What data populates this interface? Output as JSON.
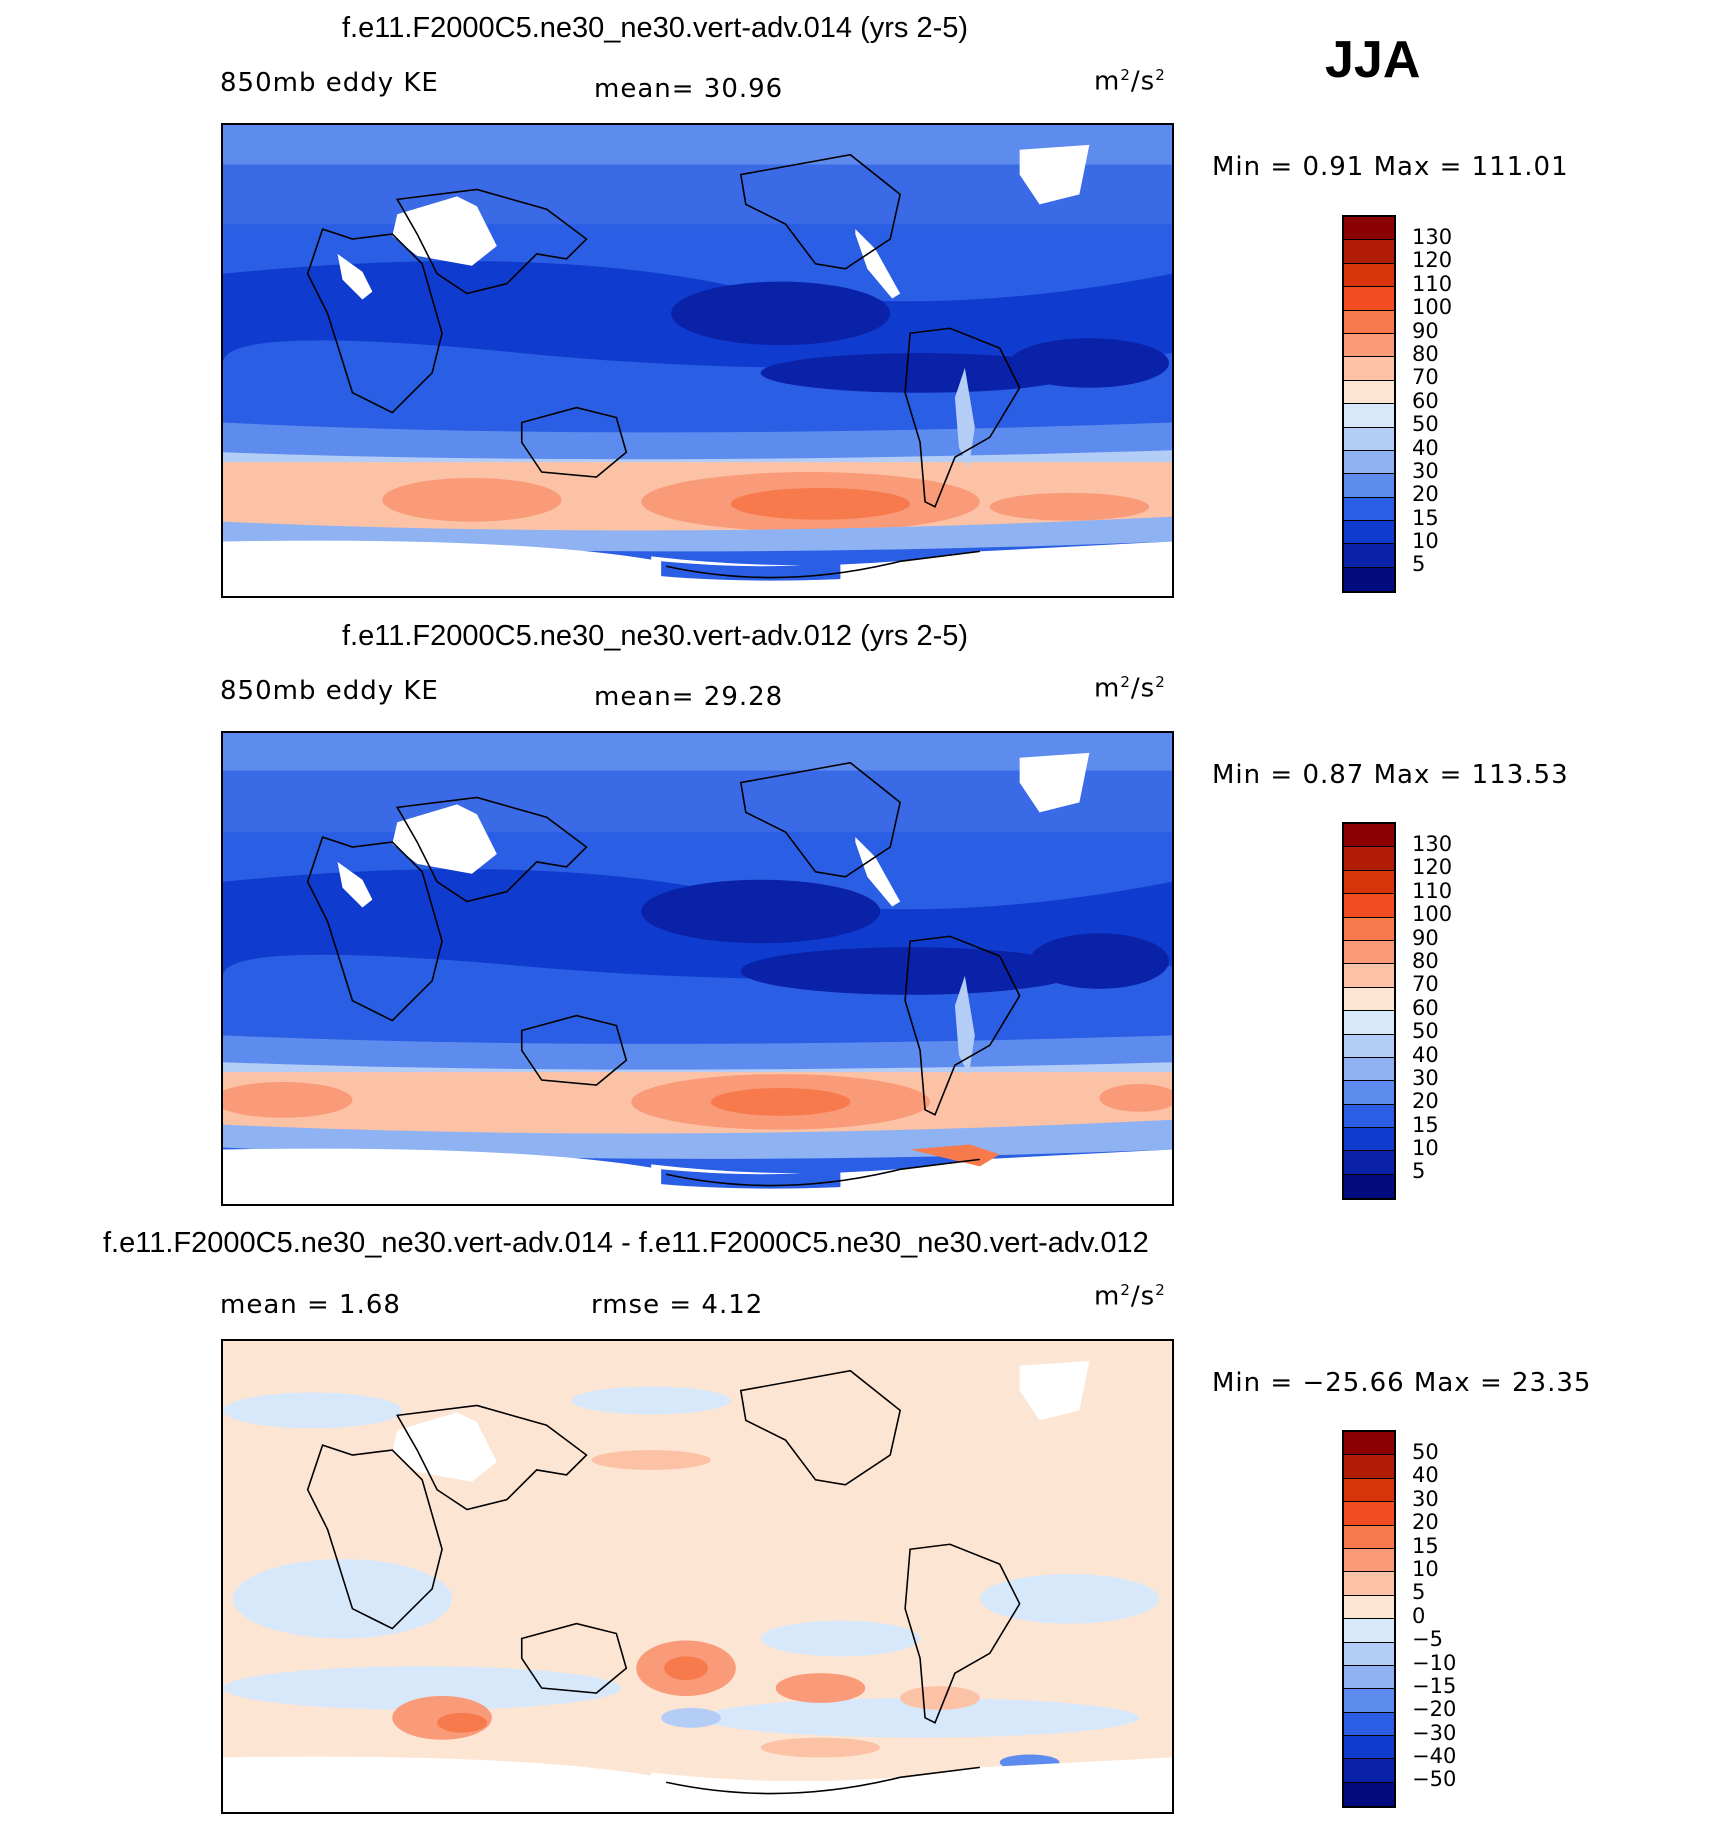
{
  "season": "JJA",
  "colors": {
    "ocean_deep": "#0a22a8",
    "ocean_mid": "#1f4fd6",
    "ocean_light": "#6f9bf0",
    "storm_track": "#f7a489",
    "storm_core": "#ef5a34",
    "coast": "#000000"
  },
  "panels": [
    {
      "title": "f.e11.F2000C5.ne30_ne30.vert-adv.014 (yrs 2-5)",
      "variable": "850mb eddy KE",
      "stat_left": "",
      "stat_center": "mean=   30.96",
      "units_base": "m",
      "units_exp1": "2",
      "units_mid": "/s",
      "units_exp2": "2",
      "minmax": "Min =    0.91  Max =  111.01",
      "colorbar": {
        "labels": [
          "130",
          "120",
          "110",
          "100",
          "90",
          "80",
          "70",
          "60",
          "50",
          "40",
          "30",
          "20",
          "15",
          "10",
          "5"
        ],
        "colors": [
          "#8b0000",
          "#b01c06",
          "#d8340c",
          "#f24c22",
          "#f77a4d",
          "#f99a78",
          "#fcc2a6",
          "#fde5d4",
          "#d8e8fb",
          "#b4cdf6",
          "#8fb2f2",
          "#5e8cee",
          "#2a5ee4",
          "#0f3ccf",
          "#0a22a8",
          "#030c7e"
        ]
      }
    },
    {
      "title": "f.e11.F2000C5.ne30_ne30.vert-adv.012 (yrs 2-5)",
      "variable": "850mb eddy KE",
      "stat_left": "",
      "stat_center": "mean=   29.28",
      "units_base": "m",
      "units_exp1": "2",
      "units_mid": "/s",
      "units_exp2": "2",
      "minmax": "Min =    0.87  Max =  113.53",
      "colorbar": {
        "labels": [
          "130",
          "120",
          "110",
          "100",
          "90",
          "80",
          "70",
          "60",
          "50",
          "40",
          "30",
          "20",
          "15",
          "10",
          "5"
        ],
        "colors": [
          "#8b0000",
          "#b01c06",
          "#d8340c",
          "#f24c22",
          "#f77a4d",
          "#f99a78",
          "#fcc2a6",
          "#fde5d4",
          "#d8e8fb",
          "#b4cdf6",
          "#8fb2f2",
          "#5e8cee",
          "#2a5ee4",
          "#0f3ccf",
          "#0a22a8",
          "#030c7e"
        ]
      }
    },
    {
      "title": "f.e11.F2000C5.ne30_ne30.vert-adv.014 - f.e11.F2000C5.ne30_ne30.vert-adv.012",
      "variable": "",
      "stat_left": "mean =     1.68",
      "stat_center": "rmse =     4.12",
      "units_base": "m",
      "units_exp1": "2",
      "units_mid": "/s",
      "units_exp2": "2",
      "minmax": "Min = −25.66  Max =   23.35",
      "colorbar": {
        "labels": [
          "50",
          "40",
          "30",
          "20",
          "15",
          "10",
          "5",
          "0",
          "−5",
          "−10",
          "−15",
          "−20",
          "−30",
          "−40",
          "−50"
        ],
        "colors": [
          "#8b0000",
          "#b01c06",
          "#d8340c",
          "#f24c22",
          "#f77a4d",
          "#f99a78",
          "#fcc2a6",
          "#fde5d4",
          "#d8e8fb",
          "#b4cdf6",
          "#8fb2f2",
          "#5e8cee",
          "#2a5ee4",
          "#0f3ccf",
          "#0a22a8",
          "#030c7e"
        ]
      }
    }
  ]
}
